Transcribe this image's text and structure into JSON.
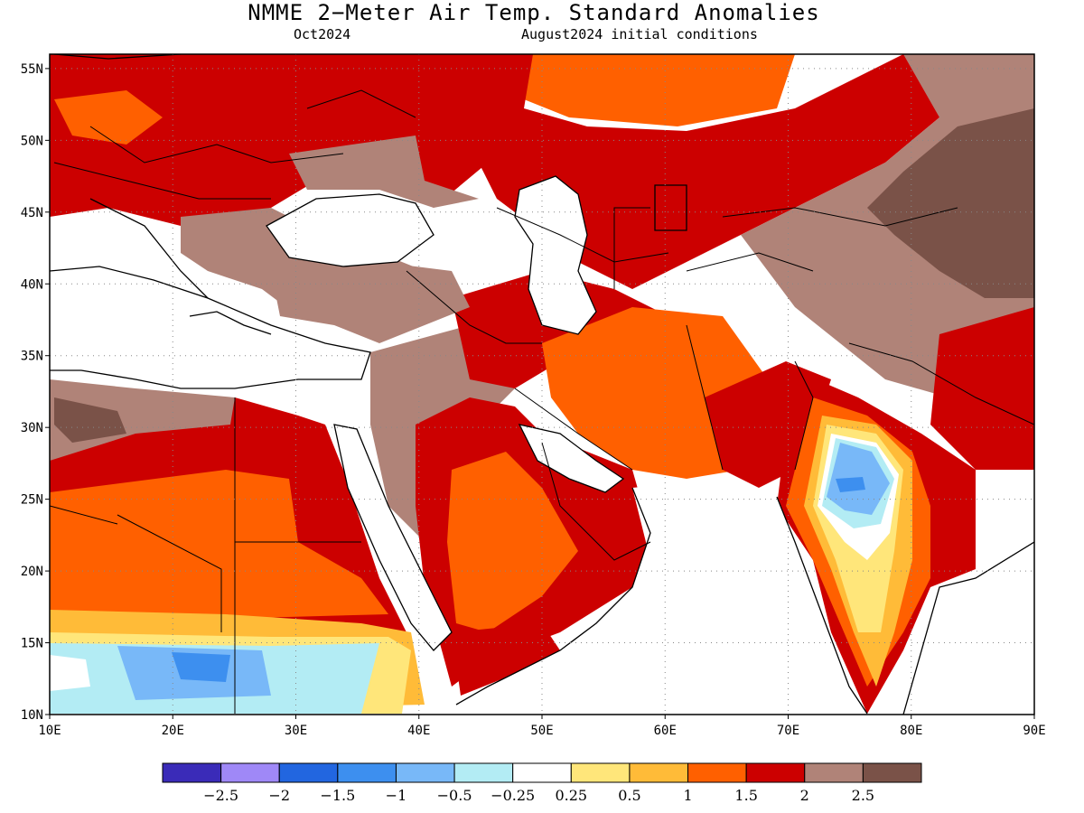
{
  "title": "NMME 2−Meter Air Temp. Standard Anomalies",
  "valid_label": "Oct2024",
  "init_label": "August2024 initial conditions",
  "y_ticks": [
    "10N",
    "15N",
    "20N",
    "25N",
    "30N",
    "35N",
    "40N",
    "45N",
    "50N",
    "55N"
  ],
  "x_ticks": [
    "10E",
    "20E",
    "30E",
    "40E",
    "50E",
    "60E",
    "70E",
    "80E",
    "90E"
  ],
  "extent": {
    "lon": [
      10,
      90
    ],
    "lat": [
      10,
      56
    ]
  },
  "colorbar": {
    "colors": [
      "#3a2bb8",
      "#9f88f7",
      "#2266e0",
      "#3d8fef",
      "#78b8f8",
      "#b3ecf4",
      "#ffffff",
      "#ffe67a",
      "#ffbb38",
      "#ff6000",
      "#cc0000",
      "#b08378",
      "#7a5248"
    ],
    "labels": [
      "−2.5",
      "−2",
      "−1.5",
      "−1",
      "−0.5",
      "−0.25",
      "0.25",
      "0.5",
      "1",
      "1.5",
      "2",
      "2.5"
    ]
  },
  "regions": [
    {
      "name": "n-africa-brown",
      "color": "#b08378",
      "lon": [
        10,
        22
      ],
      "lat": [
        25,
        32
      ]
    },
    {
      "name": "sahara-red",
      "color": "#cc0000",
      "lon": [
        10,
        40
      ],
      "lat": [
        20,
        31
      ]
    },
    {
      "name": "sahel-orange",
      "color": "#ff6000",
      "lon": [
        10,
        42
      ],
      "lat": [
        16,
        25
      ]
    },
    {
      "name": "arabia-red",
      "color": "#cc0000",
      "lon": [
        38,
        58
      ],
      "lat": [
        14,
        34
      ]
    },
    {
      "name": "arabia-orange",
      "color": "#ff6000",
      "lon": [
        43,
        55
      ],
      "lat": [
        15,
        28
      ]
    },
    {
      "name": "iran-orange",
      "color": "#ff6000",
      "lon": [
        52,
        70
      ],
      "lat": [
        25,
        36
      ]
    },
    {
      "name": "india-cool",
      "color": "#78b8f8",
      "lon": [
        72,
        79
      ],
      "lat": [
        23,
        30
      ]
    },
    {
      "name": "europe-red",
      "color": "#cc0000",
      "lon": [
        10,
        55
      ],
      "lat": [
        44,
        56
      ]
    },
    {
      "name": "russia-orange",
      "color": "#ff6000",
      "lon": [
        56,
        70
      ],
      "lat": [
        50,
        56
      ]
    },
    {
      "name": "central-asia-red",
      "color": "#cc0000",
      "lon": [
        50,
        82
      ],
      "lat": [
        36,
        50
      ]
    },
    {
      "name": "east-brown",
      "color": "#b08378",
      "lon": [
        70,
        90
      ],
      "lat": [
        30,
        56
      ]
    },
    {
      "name": "mongolia-dark",
      "color": "#7a5248",
      "lon": [
        80,
        90
      ],
      "lat": [
        38,
        52
      ]
    }
  ]
}
